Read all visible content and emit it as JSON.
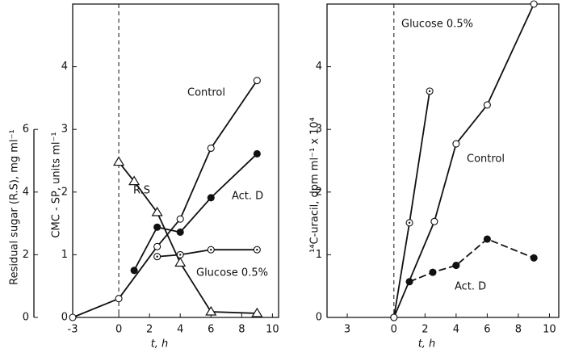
{
  "chart_data": [
    {
      "type": "line",
      "xlabel": "t, h",
      "ylabel": "CMC - SP, units ml⁻¹",
      "y2label": "Residual sugar (R.S), mg ml⁻¹",
      "xlim": [
        -3,
        10.4
      ],
      "xticks": [
        -3,
        0,
        2,
        4,
        6,
        8,
        10
      ],
      "ylim": [
        0,
        5
      ],
      "yticks": [
        0,
        1,
        2,
        3,
        4
      ],
      "y2lim": [
        0,
        10
      ],
      "y2ticks": [
        0,
        2,
        4,
        6
      ],
      "series": [
        {
          "name": "Control",
          "marker": "open-circle",
          "x": [
            -3,
            0,
            2.5,
            4,
            6,
            9
          ],
          "values": [
            0,
            0.3,
            1.13,
            1.57,
            2.7,
            3.78
          ]
        },
        {
          "name": "Act. D",
          "marker": "filled-circle",
          "x": [
            1,
            2.5,
            4,
            6,
            9
          ],
          "values": [
            0.75,
            1.44,
            1.36,
            1.91,
            2.61
          ]
        },
        {
          "name": "Glucose 0.5%",
          "marker": "dot-circle",
          "x": [
            2.5,
            4,
            6,
            9
          ],
          "values": [
            0.97,
            1.0,
            1.08,
            1.08
          ]
        },
        {
          "name": "R.S",
          "marker": "triangle",
          "axis": "y2",
          "x": [
            0,
            1,
            2.5,
            4,
            6,
            9
          ],
          "values": [
            4.96,
            4.34,
            3.35,
            1.74,
            0.18,
            0.13
          ]
        }
      ]
    },
    {
      "type": "line",
      "xlabel": "t, h",
      "ylabel": "¹⁴C-uracil, dpm ml⁻¹ x 10⁴",
      "xlim": [
        -4.3,
        10.6
      ],
      "xticks": [
        {
          "value": -3,
          "label": "3"
        },
        0,
        2,
        4,
        6,
        8,
        10
      ],
      "ylim": [
        0,
        5
      ],
      "yticks": [
        0,
        1,
        2,
        3,
        4
      ],
      "series": [
        {
          "name": "Glucose 0.5%",
          "marker": "dot-circle",
          "x": [
            0,
            1,
            2.3
          ],
          "values": [
            0,
            1.51,
            3.61
          ]
        },
        {
          "name": "Control",
          "marker": "open-circle",
          "x": [
            0,
            2.6,
            4,
            6,
            9
          ],
          "values": [
            0,
            1.53,
            2.77,
            3.39,
            5.0
          ]
        },
        {
          "name": "Act. D",
          "marker": "filled-circle",
          "dashed": true,
          "x": [
            1,
            2.5,
            4,
            6,
            9
          ],
          "values": [
            0.57,
            0.72,
            0.83,
            1.25,
            0.95
          ]
        }
      ]
    }
  ]
}
